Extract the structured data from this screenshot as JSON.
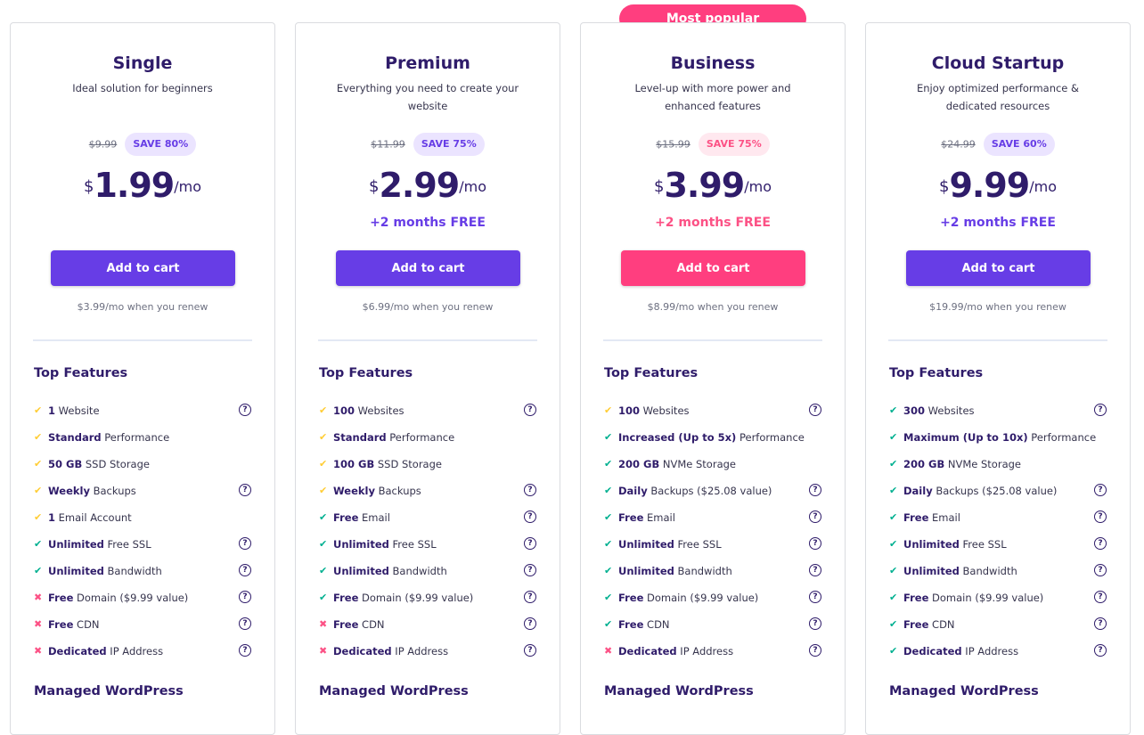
{
  "popular_badge": "Most popular",
  "section_top_features": "Top Features",
  "section_managed_wp": "Managed WordPress",
  "currency": "$",
  "period": "/mo",
  "colors": {
    "primary": "#673de6",
    "accent": "#ff3e7f",
    "check_yellow": "#ffcd35",
    "check_green": "#00b090",
    "cross_red": "#fc5185"
  },
  "plans": [
    {
      "title": "Single",
      "subtitle": "Ideal solution for beginners",
      "old_price": "$9.99",
      "save": "SAVE 80%",
      "price": "1.99",
      "bonus": "",
      "cta": "Add to cart",
      "renew": "$3.99/mo when you renew",
      "features": [
        {
          "bold": "1",
          "text": " Website",
          "icon": "check-yellow",
          "help": true
        },
        {
          "bold": "Standard",
          "text": " Performance",
          "icon": "check-yellow",
          "help": false
        },
        {
          "bold": "50 GB",
          "text": " SSD Storage",
          "icon": "check-yellow",
          "help": false
        },
        {
          "bold": "Weekly",
          "text": " Backups",
          "icon": "check-yellow",
          "help": true
        },
        {
          "bold": "1",
          "text": " Email Account",
          "icon": "check-yellow",
          "help": false
        },
        {
          "bold": "Unlimited",
          "text": " Free SSL",
          "icon": "check-green",
          "help": true
        },
        {
          "bold": "Unlimited",
          "text": " Bandwidth",
          "icon": "check-green",
          "help": true
        },
        {
          "bold": "Free",
          "text": " Domain ($9.99 value)",
          "icon": "cross-red",
          "help": true
        },
        {
          "bold": "Free",
          "text": " CDN",
          "icon": "cross-red",
          "help": true
        },
        {
          "bold": "Dedicated",
          "text": " IP Address",
          "icon": "cross-red",
          "help": true
        }
      ]
    },
    {
      "title": "Premium",
      "subtitle": "Everything you need to create your website",
      "old_price": "$11.99",
      "save": "SAVE 75%",
      "price": "2.99",
      "bonus": "+2 months FREE",
      "cta": "Add to cart",
      "renew": "$6.99/mo when you renew",
      "features": [
        {
          "bold": "100",
          "text": " Websites",
          "icon": "check-yellow",
          "help": true
        },
        {
          "bold": "Standard",
          "text": " Performance",
          "icon": "check-yellow",
          "help": false
        },
        {
          "bold": "100 GB",
          "text": " SSD Storage",
          "icon": "check-yellow",
          "help": false
        },
        {
          "bold": "Weekly",
          "text": " Backups",
          "icon": "check-yellow",
          "help": true
        },
        {
          "bold": "Free",
          "text": " Email",
          "icon": "check-green",
          "help": true
        },
        {
          "bold": "Unlimited",
          "text": " Free SSL",
          "icon": "check-green",
          "help": true
        },
        {
          "bold": "Unlimited",
          "text": " Bandwidth",
          "icon": "check-green",
          "help": true
        },
        {
          "bold": "Free",
          "text": " Domain ($9.99 value)",
          "icon": "check-green",
          "help": true
        },
        {
          "bold": "Free",
          "text": " CDN",
          "icon": "cross-red",
          "help": true
        },
        {
          "bold": "Dedicated",
          "text": " IP Address",
          "icon": "cross-red",
          "help": true
        }
      ]
    },
    {
      "title": "Business",
      "subtitle": "Level-up with more power and enhanced features",
      "old_price": "$15.99",
      "save": "SAVE 75%",
      "price": "3.99",
      "bonus": "+2 months FREE",
      "cta": "Add to cart",
      "renew": "$8.99/mo when you renew",
      "features": [
        {
          "bold": "100",
          "text": " Websites",
          "icon": "check-yellow",
          "help": true
        },
        {
          "bold": "Increased (Up to 5x)",
          "text": " Performance",
          "icon": "check-green",
          "help": false
        },
        {
          "bold": "200 GB",
          "text": " NVMe Storage",
          "icon": "check-green",
          "help": false
        },
        {
          "bold": "Daily",
          "text": " Backups ($25.08 value)",
          "icon": "check-green",
          "help": true
        },
        {
          "bold": "Free",
          "text": " Email",
          "icon": "check-green",
          "help": true
        },
        {
          "bold": "Unlimited",
          "text": " Free SSL",
          "icon": "check-green",
          "help": true
        },
        {
          "bold": "Unlimited",
          "text": " Bandwidth",
          "icon": "check-green",
          "help": true
        },
        {
          "bold": "Free",
          "text": " Domain ($9.99 value)",
          "icon": "check-green",
          "help": true
        },
        {
          "bold": "Free",
          "text": " CDN",
          "icon": "check-green",
          "help": true
        },
        {
          "bold": "Dedicated",
          "text": " IP Address",
          "icon": "cross-red",
          "help": true
        }
      ]
    },
    {
      "title": "Cloud Startup",
      "subtitle": "Enjoy optimized performance & dedicated resources",
      "old_price": "$24.99",
      "save": "SAVE 60%",
      "price": "9.99",
      "bonus": "+2 months FREE",
      "cta": "Add to cart",
      "renew": "$19.99/mo when you renew",
      "features": [
        {
          "bold": "300",
          "text": " Websites",
          "icon": "check-green",
          "help": true
        },
        {
          "bold": "Maximum (Up to 10x)",
          "text": " Performance",
          "icon": "check-green",
          "help": false
        },
        {
          "bold": "200 GB",
          "text": " NVMe Storage",
          "icon": "check-green",
          "help": false
        },
        {
          "bold": "Daily",
          "text": " Backups ($25.08 value)",
          "icon": "check-green",
          "help": true
        },
        {
          "bold": "Free",
          "text": " Email",
          "icon": "check-green",
          "help": true
        },
        {
          "bold": "Unlimited",
          "text": " Free SSL",
          "icon": "check-green",
          "help": true
        },
        {
          "bold": "Unlimited",
          "text": " Bandwidth",
          "icon": "check-green",
          "help": true
        },
        {
          "bold": "Free",
          "text": " Domain ($9.99 value)",
          "icon": "check-green",
          "help": true
        },
        {
          "bold": "Free",
          "text": " CDN",
          "icon": "check-green",
          "help": true
        },
        {
          "bold": "Dedicated",
          "text": " IP Address",
          "icon": "check-green",
          "help": true
        }
      ]
    }
  ]
}
